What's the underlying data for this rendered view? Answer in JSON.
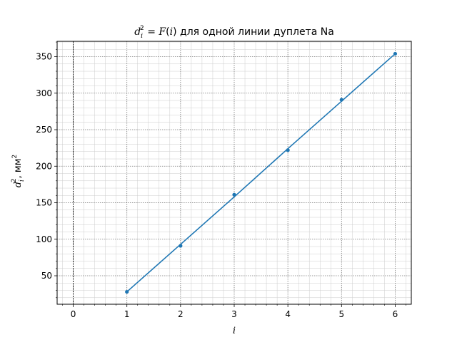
{
  "chart_data": {
    "type": "line",
    "title": "d_i^2 = F(i) для одной линии дуплета Na",
    "title_parts": {
      "d": "d",
      "sub": "i",
      "sup": "2",
      "eq": " = ",
      "F": "F",
      "open": "(",
      "i": "i",
      "close": ")",
      "rest": " для одной линии дуплета Na"
    },
    "xlabel": "i",
    "ylabel": "d_i^2, мм²",
    "ylabel_parts": {
      "d": "d",
      "sub": "i",
      "sup": "2",
      "unit": ", мм",
      "unit_sup": "2"
    },
    "xlim": [
      -0.3,
      6.3
    ],
    "ylim": [
      11,
      371
    ],
    "x_ticks": [
      0,
      1,
      2,
      3,
      4,
      5,
      6
    ],
    "x_tick_labels": [
      "0",
      "1",
      "2",
      "3",
      "4",
      "5",
      "6"
    ],
    "y_ticks": [
      50,
      100,
      150,
      200,
      250,
      300,
      350
    ],
    "y_tick_labels": [
      "50",
      "100",
      "150",
      "200",
      "250",
      "300",
      "350"
    ],
    "grid": true,
    "minor_grid": true,
    "vertical_reference_line_x": 0,
    "series": [
      {
        "x": [
          1,
          2,
          3,
          4,
          5,
          6
        ],
        "points_y": [
          28,
          91,
          161,
          222,
          291,
          354
        ],
        "fit_y": [
          28,
          93,
          158,
          224,
          289,
          354
        ],
        "color": "#1f77b4",
        "marker": "circle"
      }
    ]
  }
}
